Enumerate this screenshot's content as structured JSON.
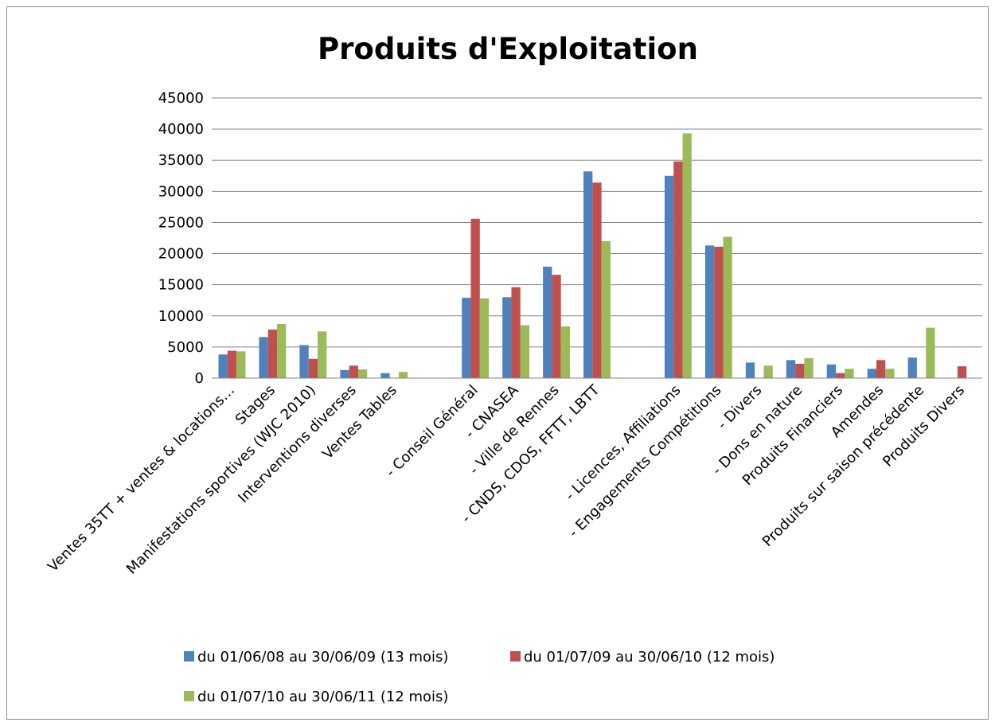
{
  "chart_data": {
    "type": "bar",
    "title": "Produits d'Exploitation",
    "xlabel": "",
    "ylabel": "",
    "ylim": [
      0,
      45000
    ],
    "yticks": [
      0,
      5000,
      10000,
      15000,
      20000,
      25000,
      30000,
      35000,
      40000,
      45000
    ],
    "grid": true,
    "legend_position": "bottom",
    "categories": [
      "Ventes 35TT + ventes & locations…",
      "Stages",
      "Manifestations sportives (WJC 2010)",
      "Interventions diverses",
      "Ventes Tables",
      "",
      "- Conseil Général",
      "- CNASEA",
      "- Ville de Rennes",
      "- CNDS, CDOS, FFTT, LBTT",
      "",
      "- Licences, Affiliations",
      "- Engagements Compétitions",
      "- Divers",
      "- Dons en nature",
      "Produits Financiers",
      "Amendes",
      "Produits sur saison précédente",
      "Produits Divers"
    ],
    "series": [
      {
        "name": "du 01/06/08 au 30/06/09 (13 mois)",
        "color": "#4F81BD",
        "values": [
          3800,
          6600,
          5300,
          1300,
          800,
          0,
          12900,
          13000,
          17900,
          33200,
          0,
          32500,
          21300,
          2500,
          2900,
          2200,
          1500,
          3300,
          0
        ]
      },
      {
        "name": "du 01/07/09 au 30/06/10 (12 mois)",
        "color": "#C0504D",
        "values": [
          4400,
          7800,
          3100,
          2000,
          0,
          0,
          25600,
          14600,
          16600,
          31400,
          0,
          34800,
          21100,
          0,
          2300,
          800,
          2900,
          0,
          1900
        ]
      },
      {
        "name": "du 01/07/10 au 30/06/11 (12 mois)",
        "color": "#9BBB59",
        "values": [
          4300,
          8700,
          7500,
          1400,
          1000,
          0,
          12800,
          8500,
          8300,
          22000,
          0,
          39300,
          22700,
          2000,
          3200,
          1500,
          1500,
          8100,
          0
        ]
      }
    ]
  }
}
